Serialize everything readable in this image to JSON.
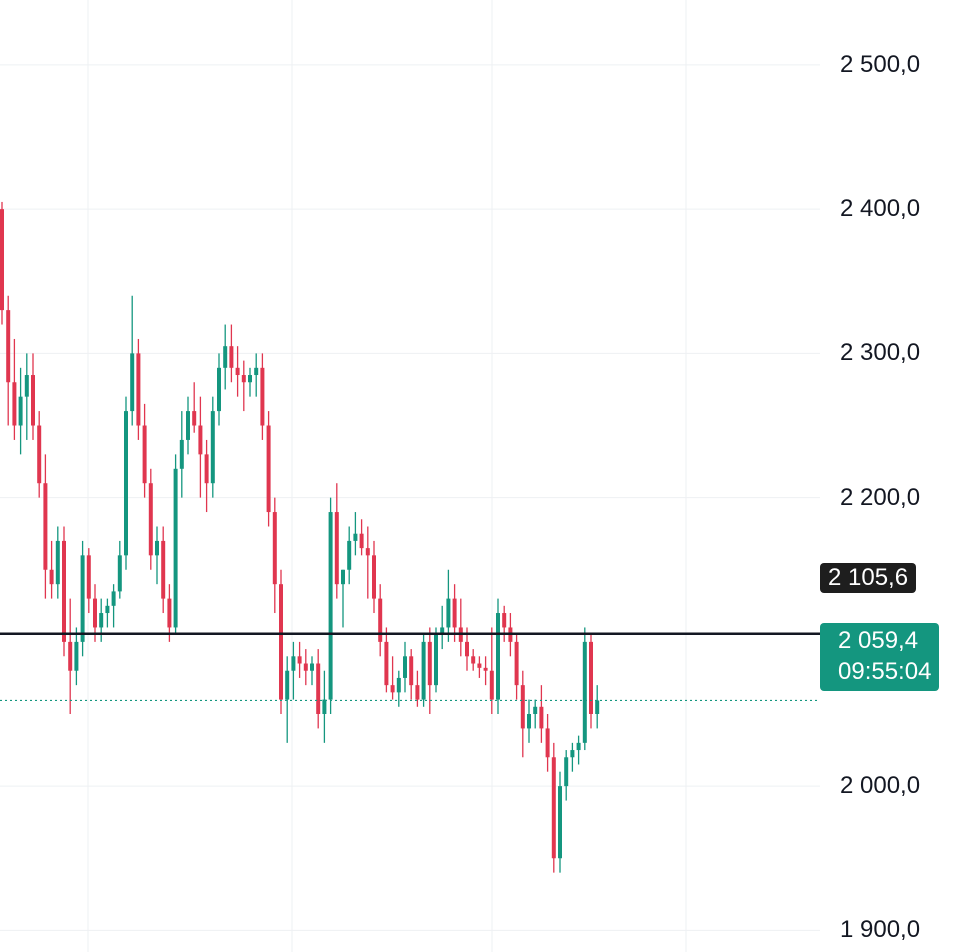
{
  "chart_data": {
    "type": "candlestick",
    "y_axis": {
      "min": 1885,
      "max": 2545,
      "ticks": [
        "2 500,0",
        "2 400,0",
        "2 300,0",
        "2 200,0",
        "2 000,0",
        "1 900,0"
      ],
      "tick_values": [
        2500,
        2400,
        2300,
        2200,
        2000,
        1900
      ],
      "position": "right"
    },
    "grid": true,
    "horizontal_line": {
      "value": 2105.6,
      "label": "2 105,6",
      "color": "#131722"
    },
    "last_price": {
      "value": 2059.4,
      "label": "2 059,4",
      "countdown": "09:55:04",
      "color": "#14967f"
    },
    "colors": {
      "up": "#14967f",
      "down": "#e0364f",
      "grid": "#eef0f3",
      "text": "#131722"
    },
    "candles": [
      [
        2400,
        2405,
        2320,
        2330
      ],
      [
        2330,
        2340,
        2250,
        2280
      ],
      [
        2280,
        2310,
        2240,
        2250
      ],
      [
        2250,
        2290,
        2230,
        2270
      ],
      [
        2270,
        2300,
        2240,
        2285
      ],
      [
        2285,
        2300,
        2240,
        2250
      ],
      [
        2250,
        2260,
        2200,
        2210
      ],
      [
        2210,
        2230,
        2130,
        2150
      ],
      [
        2150,
        2170,
        2130,
        2140
      ],
      [
        2140,
        2180,
        2130,
        2170
      ],
      [
        2170,
        2180,
        2090,
        2100
      ],
      [
        2100,
        2130,
        2050,
        2080
      ],
      [
        2080,
        2110,
        2070,
        2100
      ],
      [
        2100,
        2170,
        2090,
        2160
      ],
      [
        2160,
        2165,
        2120,
        2130
      ],
      [
        2130,
        2140,
        2100,
        2110
      ],
      [
        2110,
        2130,
        2100,
        2120
      ],
      [
        2120,
        2130,
        2110,
        2125
      ],
      [
        2125,
        2140,
        2110,
        2135
      ],
      [
        2135,
        2170,
        2130,
        2160
      ],
      [
        2160,
        2270,
        2150,
        2260
      ],
      [
        2260,
        2340,
        2250,
        2300
      ],
      [
        2300,
        2310,
        2240,
        2250
      ],
      [
        2250,
        2265,
        2200,
        2210
      ],
      [
        2210,
        2220,
        2150,
        2160
      ],
      [
        2160,
        2180,
        2140,
        2170
      ],
      [
        2170,
        2180,
        2120,
        2130
      ],
      [
        2130,
        2140,
        2100,
        2110
      ],
      [
        2110,
        2230,
        2105,
        2220
      ],
      [
        2220,
        2260,
        2200,
        2240
      ],
      [
        2240,
        2270,
        2230,
        2260
      ],
      [
        2260,
        2280,
        2245,
        2250
      ],
      [
        2250,
        2270,
        2200,
        2230
      ],
      [
        2230,
        2240,
        2190,
        2210
      ],
      [
        2210,
        2270,
        2200,
        2260
      ],
      [
        2260,
        2300,
        2250,
        2290
      ],
      [
        2290,
        2320,
        2275,
        2305
      ],
      [
        2305,
        2320,
        2280,
        2290
      ],
      [
        2290,
        2305,
        2270,
        2285
      ],
      [
        2285,
        2295,
        2260,
        2280
      ],
      [
        2280,
        2290,
        2270,
        2285
      ],
      [
        2285,
        2300,
        2270,
        2290
      ],
      [
        2290,
        2300,
        2240,
        2250
      ],
      [
        2250,
        2260,
        2180,
        2190
      ],
      [
        2190,
        2200,
        2120,
        2140
      ],
      [
        2140,
        2150,
        2050,
        2060
      ],
      [
        2060,
        2090,
        2030,
        2080
      ],
      [
        2080,
        2100,
        2060,
        2090
      ],
      [
        2090,
        2100,
        2075,
        2085
      ],
      [
        2085,
        2095,
        2070,
        2080
      ],
      [
        2080,
        2090,
        2070,
        2085
      ],
      [
        2085,
        2095,
        2040,
        2050
      ],
      [
        2050,
        2080,
        2030,
        2060
      ],
      [
        2060,
        2200,
        2050,
        2190
      ],
      [
        2190,
        2210,
        2130,
        2140
      ],
      [
        2140,
        2150,
        2110,
        2150
      ],
      [
        2150,
        2180,
        2140,
        2170
      ],
      [
        2170,
        2190,
        2160,
        2175
      ],
      [
        2175,
        2185,
        2160,
        2165
      ],
      [
        2165,
        2180,
        2130,
        2160
      ],
      [
        2160,
        2170,
        2120,
        2130
      ],
      [
        2130,
        2140,
        2090,
        2100
      ],
      [
        2100,
        2110,
        2065,
        2070
      ],
      [
        2070,
        2090,
        2060,
        2065
      ],
      [
        2065,
        2080,
        2055,
        2075
      ],
      [
        2075,
        2100,
        2065,
        2090
      ],
      [
        2090,
        2095,
        2060,
        2070
      ],
      [
        2070,
        2080,
        2055,
        2060
      ],
      [
        2060,
        2105,
        2055,
        2100
      ],
      [
        2100,
        2110,
        2050,
        2070
      ],
      [
        2070,
        2110,
        2065,
        2105
      ],
      [
        2105,
        2125,
        2095,
        2110
      ],
      [
        2110,
        2150,
        2100,
        2130
      ],
      [
        2130,
        2140,
        2100,
        2110
      ],
      [
        2110,
        2130,
        2090,
        2100
      ],
      [
        2100,
        2110,
        2080,
        2090
      ],
      [
        2090,
        2095,
        2080,
        2085
      ],
      [
        2085,
        2090,
        2075,
        2082
      ],
      [
        2082,
        2090,
        2070,
        2080
      ],
      [
        2080,
        2110,
        2050,
        2060
      ],
      [
        2060,
        2130,
        2050,
        2120
      ],
      [
        2120,
        2125,
        2100,
        2110
      ],
      [
        2110,
        2120,
        2090,
        2100
      ],
      [
        2100,
        2105,
        2060,
        2070
      ],
      [
        2070,
        2080,
        2020,
        2040
      ],
      [
        2040,
        2060,
        2030,
        2050
      ],
      [
        2050,
        2060,
        2040,
        2055
      ],
      [
        2055,
        2070,
        2030,
        2040
      ],
      [
        2040,
        2050,
        2010,
        2020
      ],
      [
        2020,
        2030,
        1940,
        1950
      ],
      [
        1950,
        2010,
        1940,
        2000
      ],
      [
        2000,
        2025,
        1990,
        2020
      ],
      [
        2020,
        2030,
        2010,
        2025
      ],
      [
        2025,
        2035,
        2015,
        2030
      ],
      [
        2030,
        2110,
        2025,
        2100
      ],
      [
        2100,
        2105,
        2040,
        2050
      ],
      [
        2050,
        2070,
        2040,
        2059.4
      ]
    ]
  }
}
